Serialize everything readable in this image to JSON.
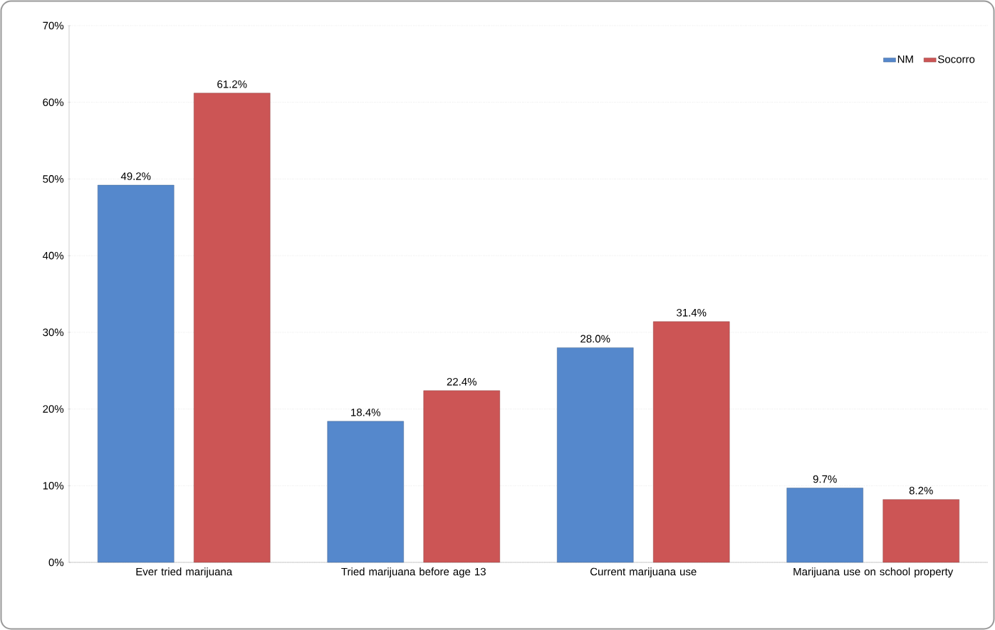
{
  "chart_data": {
    "type": "bar",
    "categories": [
      "Ever tried marijuana",
      "Tried marijuana before age 13",
      "Current marijuana use",
      "Marijuana use on school property"
    ],
    "series": [
      {
        "name": "NM",
        "color": "#5588cc",
        "values": [
          49.2,
          18.4,
          28.0,
          9.7
        ],
        "value_labels": [
          "49.2%",
          "18.4%",
          "28.0%",
          "9.7%"
        ]
      },
      {
        "name": "Socorro",
        "color": "#cc5555",
        "values": [
          61.2,
          22.4,
          31.4,
          8.2
        ],
        "value_labels": [
          "61.2%",
          "22.4%",
          "31.4%",
          "8.2%"
        ]
      }
    ],
    "ylim": [
      0,
      70
    ],
    "yticks": [
      {
        "value": 0,
        "label": "0%"
      },
      {
        "value": 10,
        "label": "10%"
      },
      {
        "value": 20,
        "label": "20%"
      },
      {
        "value": 30,
        "label": "30%"
      },
      {
        "value": 40,
        "label": "40%"
      },
      {
        "value": 50,
        "label": "50%"
      },
      {
        "value": 60,
        "label": "60%"
      },
      {
        "value": 70,
        "label": "70%"
      }
    ],
    "grid": "y",
    "legend": "top right"
  }
}
